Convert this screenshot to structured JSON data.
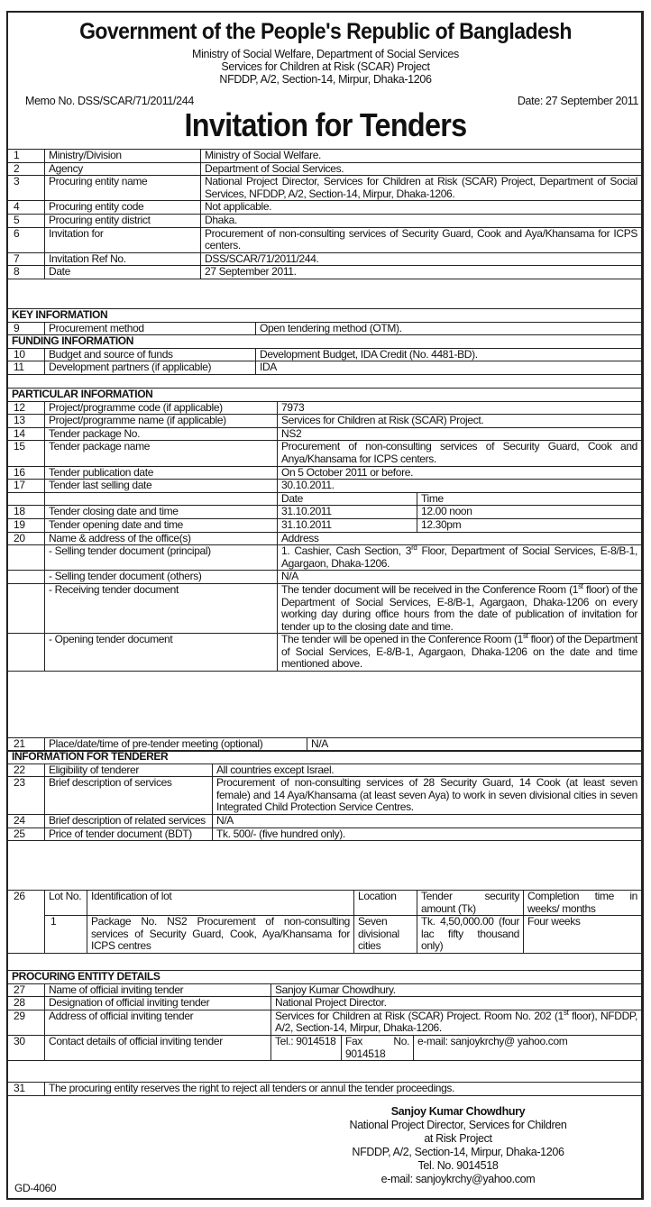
{
  "header": {
    "title": "Government of the People's Republic of Bangladesh",
    "lines": [
      "Ministry of Social Welfare, Department of Social Services",
      "Services for Children at Risk (SCAR) Project",
      "NFDDP, A/2, Section-14, Mirpur, Dhaka-1206"
    ],
    "memo": "Memo No. DSS/SCAR/71/2011/244",
    "date": "Date: 27 September 2011",
    "doc_title": "Invitation for Tenders"
  },
  "general": [
    [
      "1",
      "Ministry/Division",
      "Ministry of Social Welfare."
    ],
    [
      "2",
      "Agency",
      "Department of Social Services."
    ],
    [
      "3",
      "Procuring entity name",
      "National Project Director, Services for Children at Risk (SCAR) Project, Department of Social Services, NFDDP, A/2, Section-14, Mirpur, Dhaka-1206."
    ],
    [
      "4",
      "Procuring entity code",
      "Not applicable."
    ],
    [
      "5",
      "Procuring entity district",
      "Dhaka."
    ],
    [
      "6",
      "Invitation for",
      "Procurement of non-consulting services of Security Guard, Cook and Aya/Khansama for ICPS centers."
    ],
    [
      "7",
      "Invitation Ref No.",
      "DSS/SCAR/71/2011/244."
    ],
    [
      "8",
      "Date",
      "27 September 2011."
    ]
  ],
  "key_funding": [
    [
      {
        "t": "KEY INFORMATION",
        "span": 3,
        "head": true
      }
    ],
    [
      "9",
      "Procurement method",
      "Open tendering method (OTM)."
    ],
    [
      {
        "t": "FUNDING INFORMATION",
        "span": 3,
        "head": true
      }
    ],
    [
      "10",
      "Budget and source of funds",
      "Development Budget, IDA Credit (No. 4481-BD)."
    ],
    [
      "11",
      "Development partners (if applicable)",
      "IDA"
    ]
  ],
  "particular": [
    [
      {
        "t": "PARTICULAR INFORMATION",
        "span": 4,
        "head": true
      }
    ],
    [
      "12",
      "Project/programme code (if applicable)",
      {
        "t": "7973",
        "span": 2
      }
    ],
    [
      "13",
      "Project/programme name (if applicable)",
      {
        "t": "Services for Children at Risk (SCAR) Project.",
        "span": 2
      }
    ],
    [
      "14",
      "Tender package No.",
      {
        "t": "NS2",
        "span": 2
      }
    ],
    [
      "15",
      "Tender package name",
      {
        "t": "Procurement of non-consulting services of Security Guard, Cook and Anya/Khansama for ICPS centers.",
        "span": 2
      }
    ],
    [
      "16",
      "Tender publication date",
      {
        "t": "On 5 October 2011 or before.",
        "span": 2
      }
    ],
    [
      "17",
      "Tender last selling date",
      {
        "t": "30.10.2011.",
        "span": 2
      }
    ],
    [
      "",
      "",
      "Date",
      "Time"
    ],
    [
      "18",
      "Tender closing date and time",
      "31.10.2011",
      "12.00 noon"
    ],
    [
      "19",
      "Tender opening date and time",
      "31.10.2011",
      "12.30pm"
    ],
    [
      "20",
      "Name & address of the office(s)",
      {
        "t": "Address",
        "span": 2
      }
    ],
    [
      "",
      "- Selling tender document (principal)",
      {
        "parts": [
          "1. Cashier, Cash Section, 3",
          {
            "sup": "rd"
          },
          " Floor, Department of Social Services, E-8/B-1, Agargaon, Dhaka-1206."
        ],
        "span": 2
      }
    ],
    [
      "",
      "- Selling tender document (others)",
      {
        "t": "N/A",
        "span": 2
      }
    ],
    [
      "",
      "- Receiving tender document",
      {
        "parts": [
          "The tender document will be received in the Conference Room (1",
          {
            "sup": "st"
          },
          " floor) of the Department of Social Services, E-8/B-1, Agargaon, Dhaka-1206 on every working day during office hours from the date of publication of invitation for tender up to the closing date and time."
        ],
        "span": 2
      }
    ],
    [
      "",
      "- Opening tender document",
      {
        "parts": [
          "The tender will be opened in the Conference Room (1",
          {
            "sup": "st"
          },
          " floor) of the Department of Social Services, E-8/B-1, Agargaon, Dhaka-1206 on the date and time mentioned above."
        ],
        "span": 2
      }
    ]
  ],
  "pretender": [
    [
      "21",
      "Place/date/time of pre-tender meeting (optional)",
      "N/A"
    ]
  ],
  "tenderer": [
    [
      {
        "t": "INFORMATION FOR TENDERER",
        "span": 3,
        "head": true
      }
    ],
    [
      "22",
      "Eligibility of tenderer",
      "All countries except Israel."
    ],
    [
      "23",
      "Brief description of services",
      "Procurement of non-consulting services of 28 Security Guard, 14 Cook (at least seven female) and 14 Aya/Khansama (at least seven Aya) to work in seven divisional cities in seven Integrated Child Protection Service Centres."
    ],
    [
      "24",
      "Brief description of related services",
      "N/A"
    ],
    [
      "25",
      "Price of tender document (BDT)",
      "Tk. 500/- (five hundred only)."
    ]
  ],
  "lots": [
    [
      {
        "t": "26",
        "rowspan": 2
      },
      "Lot No.",
      "Identification of lot",
      "Location",
      "Tender security amount (Tk)",
      "Completion time in weeks/ months"
    ],
    [
      "1",
      "Package No. NS2 Procurement of non-consulting services of Security Guard, Cook, Aya/Khansama for ICPS centres",
      "Seven divisional cities",
      "Tk. 4,50,000.00 (four lac fifty thousand only)",
      "Four weeks"
    ]
  ],
  "procuring": [
    [
      {
        "t": "PROCURING ENTITY DETAILS",
        "span": 5,
        "head": true
      }
    ],
    [
      "27",
      "Name of official inviting tender",
      {
        "t": "Sanjoy Kumar Chowdhury.",
        "span": 3
      }
    ],
    [
      "28",
      "Designation of official inviting tender",
      {
        "t": "National Project Director.",
        "span": 3
      }
    ],
    [
      "29",
      "Address of official inviting tender",
      {
        "parts": [
          "Services for Children at Risk (SCAR) Project. Room No. 202 (1",
          {
            "sup": "st"
          },
          " floor), NFDDP, A/2, Section-14, Mirpur, Dhaka-1206."
        ],
        "span": 3
      }
    ],
    [
      "30",
      "Contact details of official inviting tender",
      "Tel.: 9014518",
      "Fax No. 9014518",
      "e-mail: sanjoykrchy@ yahoo.com"
    ]
  ],
  "final": [
    [
      "31",
      "The procuring entity reserves the right to reject all tenders or annul the tender proceedings."
    ]
  ],
  "signature": {
    "name": "Sanjoy Kumar Chowdhury",
    "lines": [
      "National Project Director, Services for Children",
      "at Risk Project",
      "NFDDP, A/2, Section-14, Mirpur, Dhaka-1206",
      "Tel. No. 9014518",
      "e-mail: sanjoykrchy@yahoo.com"
    ]
  },
  "footer_code": "GD-4060"
}
